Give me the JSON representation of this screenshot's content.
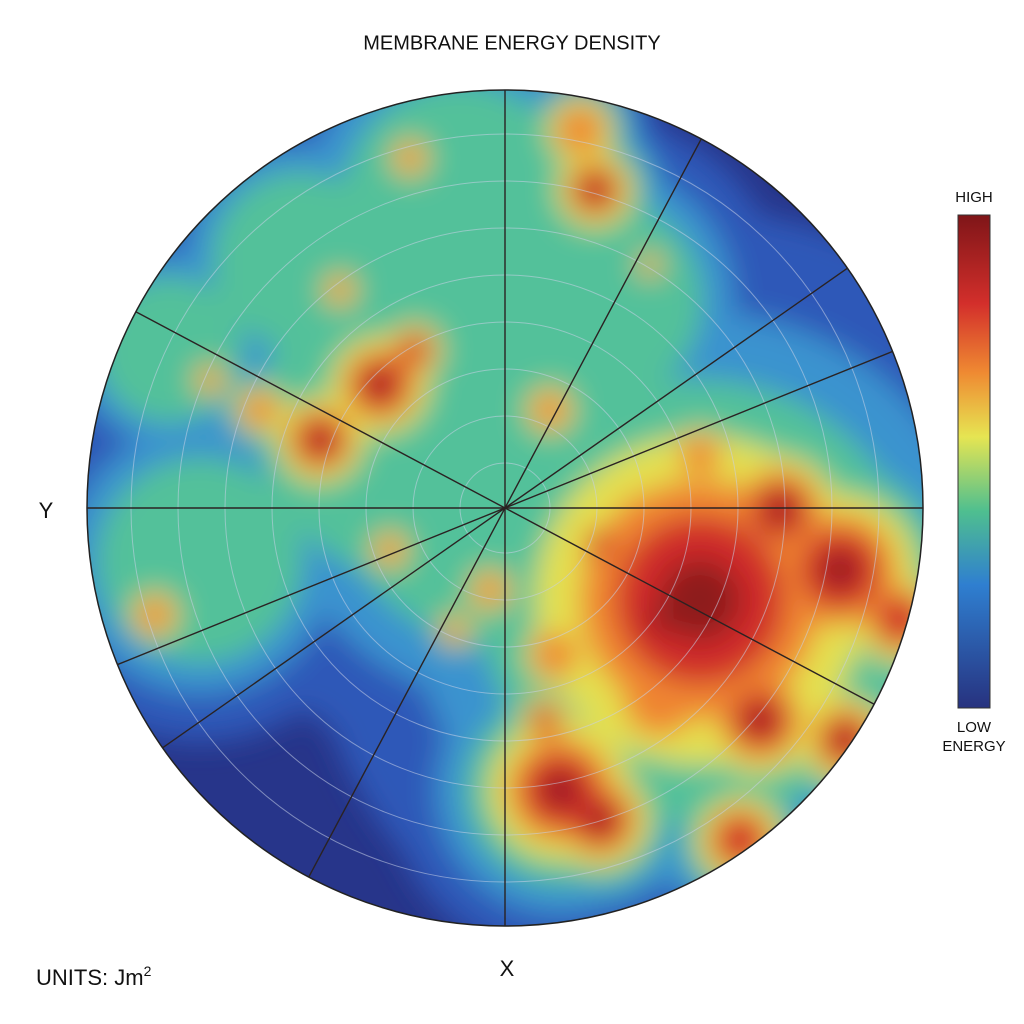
{
  "chart_data": {
    "type": "polar-heatmap",
    "title": "MEMBRANE ENERGY DENSITY",
    "x_label": "X",
    "y_label": "Y",
    "colorbar": {
      "high_label": "HIGH",
      "low_label": [
        "LOW",
        "ENERGY"
      ]
    },
    "units": {
      "text": "UNITS: Jm",
      "exponent": "2"
    }
  }
}
